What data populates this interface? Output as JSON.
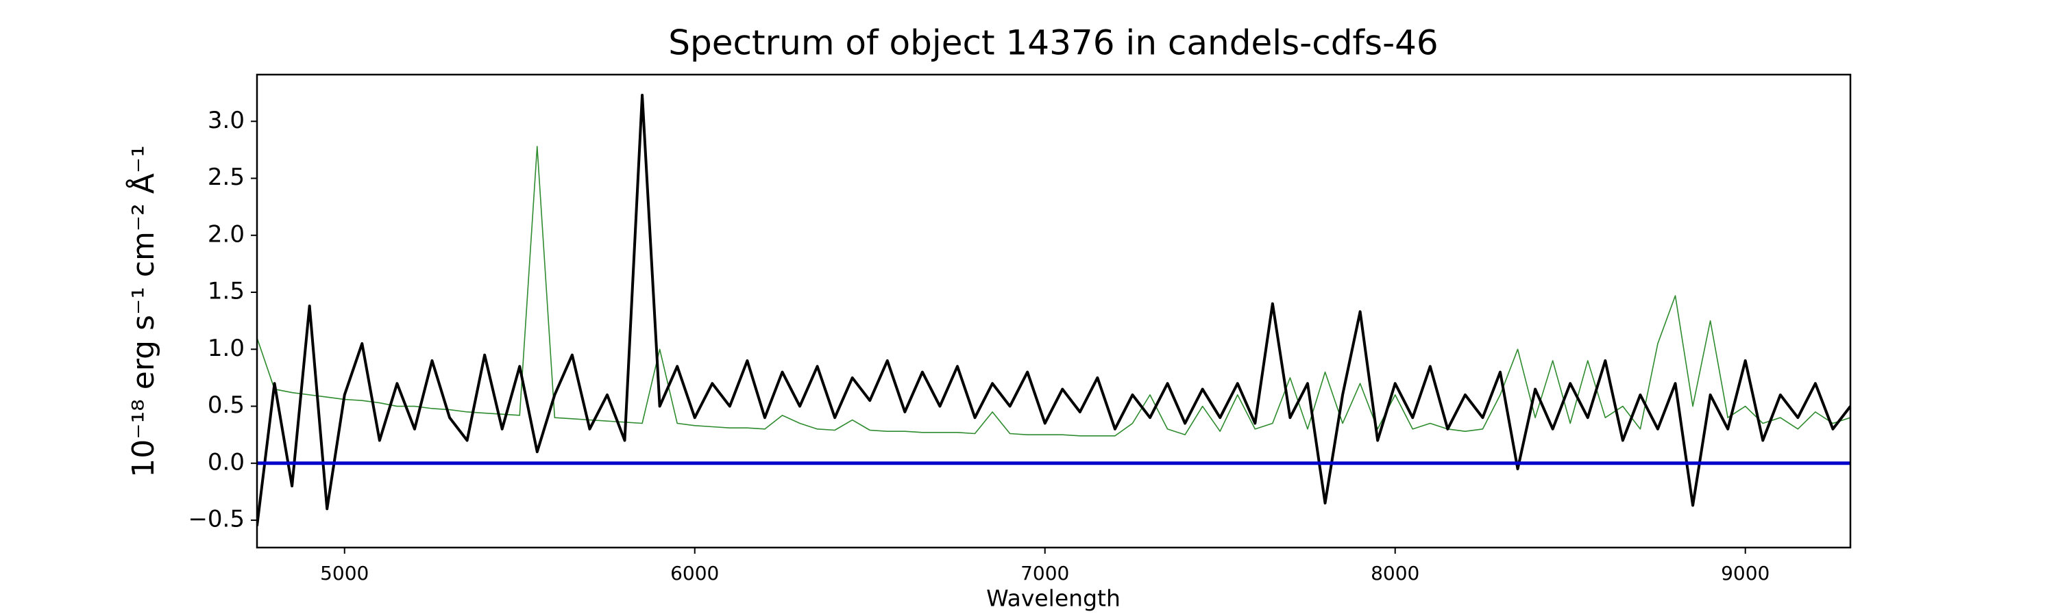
{
  "chart_data": {
    "type": "line",
    "title": "Spectrum of object 14376 in candels-cdfs-46",
    "x_label": "Wavelength",
    "y_label": "10⁻¹⁸ erg s⁻¹ cm⁻² Å⁻¹",
    "x": [
      4750,
      4800,
      4850,
      4900,
      4950,
      5000,
      5050,
      5100,
      5150,
      5200,
      5250,
      5300,
      5350,
      5400,
      5450,
      5500,
      5550,
      5600,
      5650,
      5700,
      5750,
      5800,
      5850,
      5900,
      5950,
      6000,
      6050,
      6100,
      6150,
      6200,
      6250,
      6300,
      6350,
      6400,
      6450,
      6500,
      6550,
      6600,
      6650,
      6700,
      6750,
      6800,
      6850,
      6900,
      6950,
      7000,
      7050,
      7100,
      7150,
      7200,
      7250,
      7300,
      7350,
      7400,
      7450,
      7500,
      7550,
      7600,
      7650,
      7700,
      7750,
      7800,
      7850,
      7900,
      7950,
      8000,
      8050,
      8100,
      8150,
      8200,
      8250,
      8300,
      8350,
      8400,
      8450,
      8500,
      8550,
      8600,
      8650,
      8700,
      8750,
      8800,
      8850,
      8900,
      8950,
      9000,
      9050,
      9100,
      9150,
      9200,
      9250,
      9300
    ],
    "series": [
      {
        "color": "#2e8b2e",
        "width": 1.6,
        "values": [
          1.1,
          0.65,
          0.62,
          0.6,
          0.58,
          0.56,
          0.55,
          0.53,
          0.5,
          0.5,
          0.48,
          0.47,
          0.45,
          0.44,
          0.43,
          0.42,
          2.78,
          0.4,
          0.39,
          0.38,
          0.37,
          0.36,
          0.35,
          1.0,
          0.35,
          0.33,
          0.32,
          0.31,
          0.31,
          0.3,
          0.42,
          0.35,
          0.3,
          0.29,
          0.38,
          0.29,
          0.28,
          0.28,
          0.27,
          0.27,
          0.27,
          0.26,
          0.45,
          0.26,
          0.25,
          0.25,
          0.25,
          0.24,
          0.24,
          0.24,
          0.35,
          0.6,
          0.3,
          0.25,
          0.5,
          0.28,
          0.6,
          0.3,
          0.35,
          0.75,
          0.3,
          0.8,
          0.35,
          0.7,
          0.3,
          0.6,
          0.3,
          0.35,
          0.3,
          0.28,
          0.3,
          0.6,
          1.0,
          0.4,
          0.9,
          0.35,
          0.9,
          0.4,
          0.5,
          0.3,
          1.05,
          1.47,
          0.5,
          1.25,
          0.4,
          0.5,
          0.35,
          0.4,
          0.3,
          0.45,
          0.35,
          0.4
        ]
      },
      {
        "color": "#000000",
        "width": 4,
        "values": [
          -0.55,
          0.7,
          -0.2,
          1.38,
          -0.4,
          0.6,
          1.05,
          0.2,
          0.7,
          0.3,
          0.9,
          0.4,
          0.2,
          0.95,
          0.3,
          0.85,
          0.1,
          0.6,
          0.95,
          0.3,
          0.6,
          0.2,
          3.23,
          0.5,
          0.85,
          0.4,
          0.7,
          0.5,
          0.9,
          0.4,
          0.8,
          0.5,
          0.85,
          0.4,
          0.75,
          0.55,
          0.9,
          0.45,
          0.8,
          0.5,
          0.85,
          0.4,
          0.7,
          0.5,
          0.8,
          0.35,
          0.65,
          0.45,
          0.75,
          0.3,
          0.6,
          0.4,
          0.7,
          0.35,
          0.65,
          0.4,
          0.7,
          0.35,
          1.4,
          0.4,
          0.7,
          -0.35,
          0.6,
          1.33,
          0.2,
          0.7,
          0.4,
          0.85,
          0.3,
          0.6,
          0.4,
          0.8,
          -0.05,
          0.65,
          0.3,
          0.7,
          0.4,
          0.9,
          0.2,
          0.6,
          0.3,
          0.7,
          -0.37,
          0.6,
          0.3,
          0.9,
          0.2,
          0.6,
          0.4,
          0.7,
          0.3,
          0.5
        ]
      }
    ],
    "reference_line": {
      "value": 0,
      "color": "#0000cc"
    },
    "xlim": [
      4750,
      9300
    ],
    "ylim": [
      -0.74,
      3.41
    ],
    "xticks": [
      5000,
      6000,
      7000,
      8000,
      9000
    ],
    "yticks": [
      {
        "value": -0.5,
        "label": "−0.5"
      },
      {
        "value": 0,
        "label": "0.0"
      },
      0.5,
      {
        "value": 1,
        "label": "1.0"
      },
      1.5,
      {
        "value": 2,
        "label": "2.0"
      },
      2.5,
      {
        "value": 3,
        "label": "3.0"
      }
    ]
  }
}
